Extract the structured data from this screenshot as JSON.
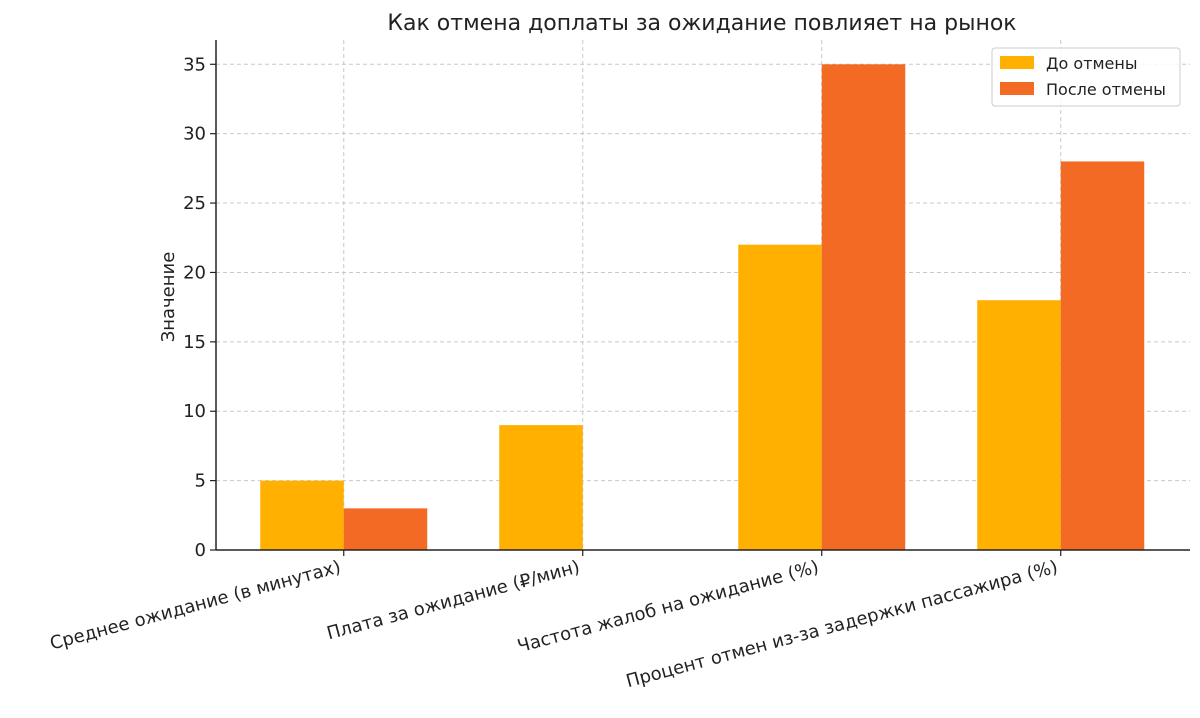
{
  "chart_data": {
    "type": "bar",
    "title": "Как отмена доплаты за ожидание повлияет на рынок",
    "xlabel": "",
    "ylabel": "Значение",
    "categories": [
      "Среднее ожидание (в минутах)",
      "Плата за ожидание (₽/мин)",
      "Частота жалоб на ожидание (%)",
      "Процент отмен из-за задержки пассажира (%)"
    ],
    "series": [
      {
        "name": "До отмены",
        "values": [
          5,
          9,
          22,
          18
        ],
        "color": "#FFB000"
      },
      {
        "name": "После отмены",
        "values": [
          3,
          0,
          35,
          28
        ],
        "color": "#F26A24"
      }
    ],
    "ylim": [
      0,
      36.75
    ],
    "yticks": [
      0,
      5,
      10,
      15,
      20,
      25,
      30,
      35
    ],
    "grid": true,
    "legend_position": "top-right"
  }
}
